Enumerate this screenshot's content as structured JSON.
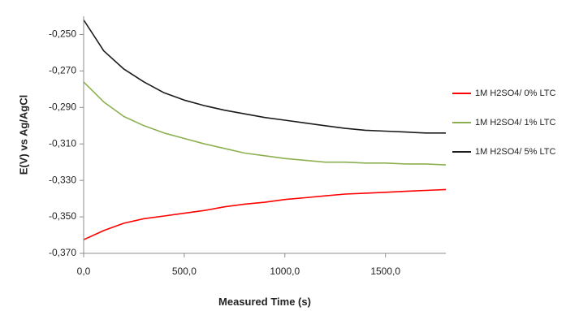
{
  "chart_data": {
    "type": "line",
    "title": "",
    "xlabel": "Measured Time (s)",
    "ylabel": "E(V) vs Ag/AgCl",
    "xlim": [
      0,
      1800
    ],
    "ylim": [
      -0.37,
      -0.24
    ],
    "x_ticks": [
      0,
      500,
      1000,
      1500
    ],
    "x_tick_labels": [
      "0,0",
      "500,0",
      "1000,0",
      "1500,0"
    ],
    "y_ticks": [
      -0.25,
      -0.27,
      -0.29,
      -0.31,
      -0.33,
      -0.35,
      -0.37
    ],
    "y_tick_labels": [
      "-0,250",
      "-0,270",
      "-0,290",
      "-0,310",
      "-0,330",
      "-0,350",
      "-0,370"
    ],
    "grid": false,
    "legend_position": "right",
    "x": [
      0,
      100,
      200,
      300,
      400,
      500,
      600,
      700,
      800,
      900,
      1000,
      1100,
      1200,
      1300,
      1400,
      1500,
      1600,
      1700,
      1800
    ],
    "series": [
      {
        "name": "1M H2SO4/ 0% LTC",
        "color": "#ff0000",
        "values": [
          -0.3625,
          -0.3575,
          -0.3535,
          -0.351,
          -0.3495,
          -0.348,
          -0.3465,
          -0.3445,
          -0.343,
          -0.342,
          -0.3405,
          -0.3395,
          -0.3385,
          -0.3375,
          -0.337,
          -0.3365,
          -0.336,
          -0.3355,
          -0.335
        ]
      },
      {
        "name": "1M H2SO4/ 1% LTC",
        "color": "#8cb050",
        "values": [
          -0.276,
          -0.287,
          -0.295,
          -0.3,
          -0.304,
          -0.307,
          -0.31,
          -0.3125,
          -0.315,
          -0.3165,
          -0.318,
          -0.319,
          -0.32,
          -0.32,
          -0.3205,
          -0.3205,
          -0.321,
          -0.321,
          -0.3215
        ]
      },
      {
        "name": "1M H2SO4/ 5% LTC",
        "color": "#1a1a1a",
        "values": [
          -0.242,
          -0.259,
          -0.269,
          -0.276,
          -0.282,
          -0.286,
          -0.289,
          -0.2915,
          -0.2935,
          -0.2955,
          -0.297,
          -0.2985,
          -0.3,
          -0.3015,
          -0.3025,
          -0.303,
          -0.3035,
          -0.304,
          -0.304
        ]
      }
    ]
  }
}
